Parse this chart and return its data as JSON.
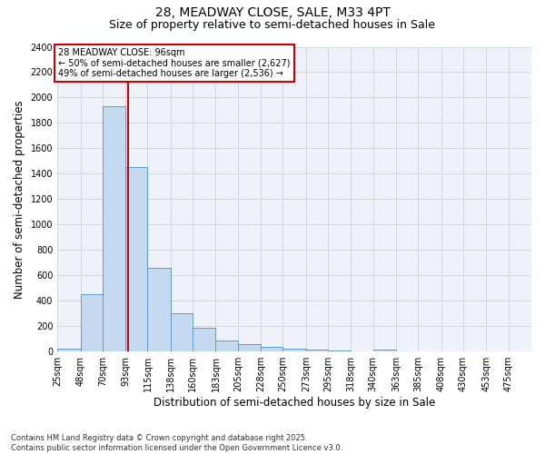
{
  "title1": "28, MEADWAY CLOSE, SALE, M33 4PT",
  "title2": "Size of property relative to semi-detached houses in Sale",
  "xlabel": "Distribution of semi-detached houses by size in Sale",
  "ylabel": "Number of semi-detached properties",
  "property_size": 96,
  "ann_line1": "28 MEADWAY CLOSE: 96sqm",
  "ann_line2": "← 50% of semi-detached houses are smaller (2,627)",
  "ann_line3": "49% of semi-detached houses are larger (2,536) →",
  "bar_edges": [
    25,
    48,
    70,
    93,
    115,
    138,
    160,
    183,
    205,
    228,
    250,
    273,
    295,
    318,
    340,
    363,
    385,
    408,
    430,
    453,
    475,
    498
  ],
  "bar_heights": [
    20,
    450,
    1930,
    1450,
    660,
    305,
    185,
    90,
    60,
    35,
    20,
    15,
    10,
    5,
    15,
    0,
    0,
    0,
    0,
    0,
    0
  ],
  "bar_color": "#c5d9f1",
  "bar_edge_color": "#5b9bd5",
  "red_line_color": "#cc0000",
  "annotation_box_color": "#cc0000",
  "grid_color": "#d0d8e8",
  "bg_color": "#eef2f8",
  "ylim_max": 2400,
  "yticks": [
    0,
    200,
    400,
    600,
    800,
    1000,
    1200,
    1400,
    1600,
    1800,
    2000,
    2200,
    2400
  ],
  "tick_labels": [
    "25sqm",
    "48sqm",
    "70sqm",
    "93sqm",
    "115sqm",
    "138sqm",
    "160sqm",
    "183sqm",
    "205sqm",
    "228sqm",
    "250sqm",
    "273sqm",
    "295sqm",
    "318sqm",
    "340sqm",
    "363sqm",
    "385sqm",
    "408sqm",
    "430sqm",
    "453sqm",
    "475sqm"
  ],
  "footnote": "Contains HM Land Registry data © Crown copyright and database right 2025.\nContains public sector information licensed under the Open Government Licence v3.0.",
  "title_fontsize": 10,
  "subtitle_fontsize": 9,
  "axis_label_fontsize": 8.5,
  "tick_fontsize": 7,
  "ann_fontsize": 7,
  "footnote_fontsize": 6
}
